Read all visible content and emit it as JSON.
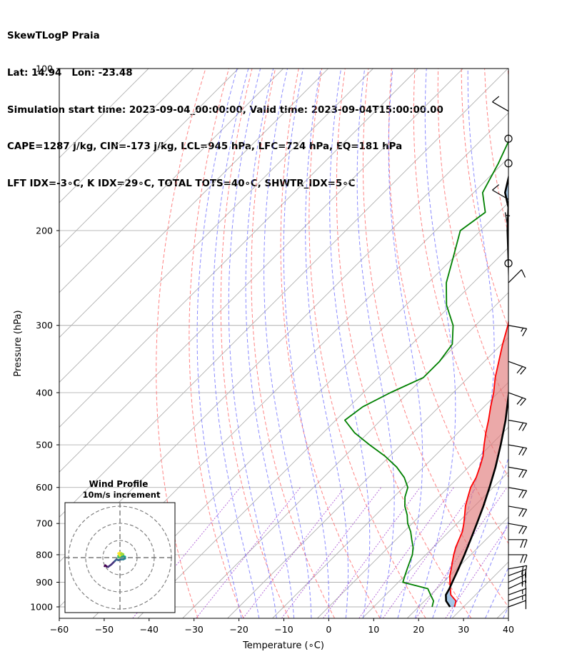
{
  "header": {
    "line1": "SkewTLogP Praia",
    "line2": "Lat: 14.94   Lon: -23.48",
    "line3": "Simulation start time: 2023-09-04_00:00:00, Valid time: 2023-09-04T15:00:00.00",
    "line4": "CAPE=1287 j/kg, CIN=-173 j/kg, LCL=945 hPa, LFC=724 hPa, EQ=181 hPa",
    "line5": "LFT IDX=-3∘C, K IDX=29∘C, TOTAL TOTS=40∘C, SHWTR_IDX=5∘C"
  },
  "chart_data": {
    "type": "line",
    "subtype": "skew-t log-p",
    "xlabel": "Temperature (∘C)",
    "ylabel": "Pressure (hPa)",
    "xlim": [
      -60,
      40
    ],
    "ylim": [
      1050,
      100
    ],
    "y_scale": "log",
    "x_ticks": [
      "−60",
      "−50",
      "−40",
      "−30",
      "−20",
      "−10",
      "0",
      "10",
      "20",
      "30",
      "40"
    ],
    "x_tick_values": [
      -60,
      -50,
      -40,
      -30,
      -20,
      -10,
      0,
      10,
      20,
      30,
      40
    ],
    "y_ticks": [
      "100",
      "200",
      "300",
      "400",
      "500",
      "600",
      "700",
      "800",
      "900",
      "1000"
    ],
    "y_tick_values": [
      100,
      200,
      300,
      400,
      500,
      600,
      700,
      800,
      900,
      1000
    ],
    "grid": true,
    "temperature": {
      "color": "#ff0000",
      "points": [
        [
          1000,
          28
        ],
        [
          975,
          27
        ],
        [
          950,
          24.5
        ],
        [
          925,
          23
        ],
        [
          900,
          21.5
        ],
        [
          875,
          20
        ],
        [
          850,
          18.8
        ],
        [
          825,
          17.5
        ],
        [
          800,
          16.2
        ],
        [
          775,
          15
        ],
        [
          750,
          14
        ],
        [
          725,
          13
        ],
        [
          700,
          11.5
        ],
        [
          675,
          9.8
        ],
        [
          650,
          8
        ],
        [
          625,
          6.5
        ],
        [
          600,
          5
        ],
        [
          575,
          4
        ],
        [
          550,
          2.5
        ],
        [
          525,
          0.8
        ],
        [
          500,
          -1.5
        ],
        [
          475,
          -3.8
        ],
        [
          450,
          -6
        ],
        [
          425,
          -8.5
        ],
        [
          400,
          -11
        ],
        [
          375,
          -14
        ],
        [
          350,
          -16.8
        ],
        [
          325,
          -19.8
        ],
        [
          300,
          -22.8
        ],
        [
          275,
          -26.5
        ],
        [
          250,
          -30.5
        ],
        [
          225,
          -35
        ],
        [
          200,
          -40
        ],
        [
          185,
          -43.5
        ],
        [
          170,
          -47
        ],
        [
          155,
          -50.5
        ],
        [
          140,
          -53.5
        ],
        [
          125,
          -56
        ],
        [
          115,
          -59.5
        ],
        [
          110,
          -62.5
        ],
        [
          105,
          -65.5
        ],
        [
          100,
          -68.5
        ]
      ]
    },
    "dewpoint": {
      "color": "#008000",
      "points": [
        [
          1000,
          23
        ],
        [
          975,
          22
        ],
        [
          950,
          20
        ],
        [
          925,
          18
        ],
        [
          900,
          11
        ],
        [
          875,
          10
        ],
        [
          850,
          9
        ],
        [
          825,
          8
        ],
        [
          800,
          7
        ],
        [
          775,
          5.5
        ],
        [
          750,
          3.5
        ],
        [
          725,
          1.5
        ],
        [
          700,
          -1
        ],
        [
          675,
          -3
        ],
        [
          650,
          -5.5
        ],
        [
          625,
          -7.5
        ],
        [
          600,
          -9
        ],
        [
          575,
          -12
        ],
        [
          550,
          -16
        ],
        [
          525,
          -21
        ],
        [
          500,
          -27
        ],
        [
          475,
          -33
        ],
        [
          450,
          -38
        ],
        [
          425,
          -37
        ],
        [
          400,
          -34
        ],
        [
          375,
          -30
        ],
        [
          350,
          -30
        ],
        [
          325,
          -31
        ],
        [
          300,
          -35
        ],
        [
          275,
          -41
        ],
        [
          250,
          -46
        ],
        [
          225,
          -50
        ],
        [
          200,
          -54.5
        ],
        [
          185,
          -53
        ],
        [
          170,
          -58
        ],
        [
          150,
          -61
        ],
        [
          130,
          -65
        ],
        [
          115,
          -69
        ],
        [
          108,
          -68.5
        ],
        [
          100,
          -68.5
        ]
      ]
    },
    "parcel": {
      "color": "#000000",
      "points": [
        [
          1000,
          27
        ],
        [
          975,
          24.8
        ],
        [
          950,
          23.4
        ],
        [
          925,
          22.8
        ],
        [
          900,
          22
        ],
        [
          850,
          20.4
        ],
        [
          800,
          18.6
        ],
        [
          750,
          16.6
        ],
        [
          700,
          14.4
        ],
        [
          650,
          12
        ],
        [
          600,
          9.2
        ],
        [
          550,
          6
        ],
        [
          500,
          2.2
        ],
        [
          450,
          -2.2
        ],
        [
          400,
          -7.6
        ],
        [
          350,
          -14.2
        ],
        [
          300,
          -22.2
        ],
        [
          250,
          -32
        ],
        [
          200,
          -44
        ],
        [
          181,
          -49
        ],
        [
          170,
          -53
        ],
        [
          150,
          -58
        ],
        [
          130,
          -63.5
        ],
        [
          115,
          -67.5
        ],
        [
          100,
          -71.5
        ]
      ]
    },
    "cape_fill_color": "#e07b7b",
    "cin_fill_color": "#5b9bd5",
    "isotherm_color": "#b0b0b0",
    "dry_adiabat_color": "#ff6666",
    "moist_adiabat_color": "#6666ff",
    "mixing_ratio_color": "#9933cc",
    "wind_barbs": [
      {
        "p": 1000,
        "speed_kt": 10,
        "dir": 70
      },
      {
        "p": 975,
        "speed_kt": 15,
        "dir": 70
      },
      {
        "p": 950,
        "speed_kt": 15,
        "dir": 70
      },
      {
        "p": 925,
        "speed_kt": 15,
        "dir": 65
      },
      {
        "p": 900,
        "speed_kt": 20,
        "dir": 65
      },
      {
        "p": 875,
        "speed_kt": 20,
        "dir": 70
      },
      {
        "p": 850,
        "speed_kt": 20,
        "dir": 80
      },
      {
        "p": 800,
        "speed_kt": 20,
        "dir": 90
      },
      {
        "p": 750,
        "speed_kt": 20,
        "dir": 90
      },
      {
        "p": 700,
        "speed_kt": 20,
        "dir": 100
      },
      {
        "p": 650,
        "speed_kt": 20,
        "dir": 100
      },
      {
        "p": 600,
        "speed_kt": 20,
        "dir": 100
      },
      {
        "p": 550,
        "speed_kt": 20,
        "dir": 100
      },
      {
        "p": 500,
        "speed_kt": 20,
        "dir": 100
      },
      {
        "p": 450,
        "speed_kt": 20,
        "dir": 100
      },
      {
        "p": 400,
        "speed_kt": 20,
        "dir": 110
      },
      {
        "p": 350,
        "speed_kt": 20,
        "dir": 110
      },
      {
        "p": 300,
        "speed_kt": 15,
        "dir": 100
      },
      {
        "p": 250,
        "speed_kt": 10,
        "dir": 45
      },
      {
        "p": 230,
        "speed_kt": 0,
        "dir": 0
      },
      {
        "p": 200,
        "speed_kt": 5,
        "dir": 350
      },
      {
        "p": 175,
        "speed_kt": 10,
        "dir": 300
      },
      {
        "p": 150,
        "speed_kt": 0,
        "dir": 0
      },
      {
        "p": 135,
        "speed_kt": 0,
        "dir": 0
      },
      {
        "p": 120,
        "speed_kt": 10,
        "dir": 300
      }
    ],
    "hodograph": {
      "title": "Wind Profile",
      "subtitle": "10m/s increment",
      "rings_ms": [
        10,
        20,
        30
      ],
      "points_uv": [
        [
          -9,
          -5
        ],
        [
          -8.5,
          -4.5
        ],
        [
          -8,
          -5
        ],
        [
          -7,
          -5.5
        ],
        [
          -5,
          -4
        ],
        [
          -4,
          -3
        ],
        [
          -3,
          -2
        ],
        [
          -2,
          -1
        ],
        [
          -1,
          -1.5
        ],
        [
          1,
          -1
        ],
        [
          2,
          -1
        ],
        [
          3,
          -0.5
        ],
        [
          3,
          0.5
        ],
        [
          2,
          1
        ],
        [
          1,
          0.5
        ],
        [
          0,
          0.5
        ],
        [
          -1,
          0
        ],
        [
          -1,
          1
        ],
        [
          0,
          1.5
        ],
        [
          1,
          1.5
        ],
        [
          2,
          2
        ],
        [
          0,
          3
        ],
        [
          -1,
          2.5
        ],
        [
          0,
          1
        ]
      ]
    }
  }
}
